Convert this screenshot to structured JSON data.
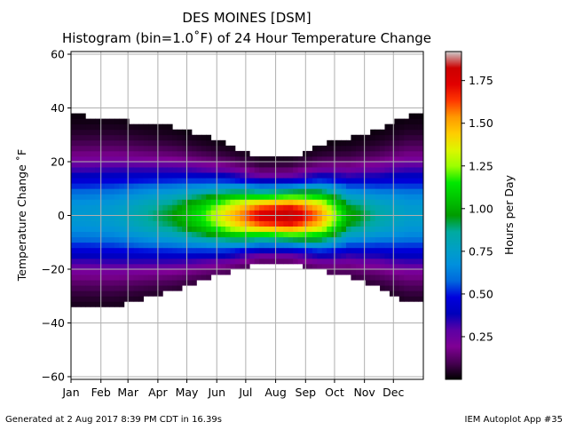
{
  "title_line1": "DES MOINES [DSM]",
  "title_line2": "Histogram (bin=1.0˚F) of 24 Hour Temperature Change",
  "footer_left": "Generated at 2 Aug 2017 8:39 PM CDT in 16.39s",
  "footer_right": "IEM Autoplot App #35",
  "chart_data": {
    "type": "heatmap",
    "title": "Histogram (bin=1.0˚F) of 24 Hour Temperature Change",
    "ylabel": "Temperature Change ˚F",
    "xlabel": "",
    "x_ticks": [
      "Jan",
      "Feb",
      "Mar",
      "Apr",
      "May",
      "Jun",
      "Jul",
      "Aug",
      "Sep",
      "Oct",
      "Nov",
      "Dec"
    ],
    "y_ticks": [
      60,
      40,
      20,
      0,
      -20,
      -40,
      -60
    ],
    "ylim": [
      -61,
      61
    ],
    "xlim_days": [
      1,
      366
    ],
    "grid": true,
    "colorbar": {
      "label": "Hours per Day",
      "ticks": [
        1.75,
        1.5,
        1.25,
        1.0,
        0.75,
        0.5,
        0.25
      ],
      "range": [
        0.0,
        1.92
      ],
      "colormap": "nipy_spectral"
    },
    "monthly_profile": [
      {
        "month": "Jan",
        "upper_extent": 37,
        "lower_extent": -33,
        "peak_hours_per_day": 0.72
      },
      {
        "month": "Feb",
        "upper_extent": 36,
        "lower_extent": -34,
        "peak_hours_per_day": 0.75
      },
      {
        "month": "Mar",
        "upper_extent": 34,
        "lower_extent": -31,
        "peak_hours_per_day": 0.85
      },
      {
        "month": "Apr",
        "upper_extent": 33,
        "lower_extent": -28,
        "peak_hours_per_day": 0.95
      },
      {
        "month": "May",
        "upper_extent": 30,
        "lower_extent": -24,
        "peak_hours_per_day": 1.15
      },
      {
        "month": "Jun",
        "upper_extent": 26,
        "lower_extent": -21,
        "peak_hours_per_day": 1.45
      },
      {
        "month": "Jul",
        "upper_extent": 21,
        "lower_extent": -18,
        "peak_hours_per_day": 1.75
      },
      {
        "month": "Aug",
        "upper_extent": 21,
        "lower_extent": -18,
        "peak_hours_per_day": 1.85
      },
      {
        "month": "Sep",
        "upper_extent": 26,
        "lower_extent": -20,
        "peak_hours_per_day": 1.55
      },
      {
        "month": "Oct",
        "upper_extent": 29,
        "lower_extent": -23,
        "peak_hours_per_day": 1.0
      },
      {
        "month": "Nov",
        "upper_extent": 32,
        "lower_extent": -27,
        "peak_hours_per_day": 0.85
      },
      {
        "month": "Dec",
        "upper_extent": 37,
        "lower_extent": -32,
        "peak_hours_per_day": 0.75
      }
    ]
  }
}
